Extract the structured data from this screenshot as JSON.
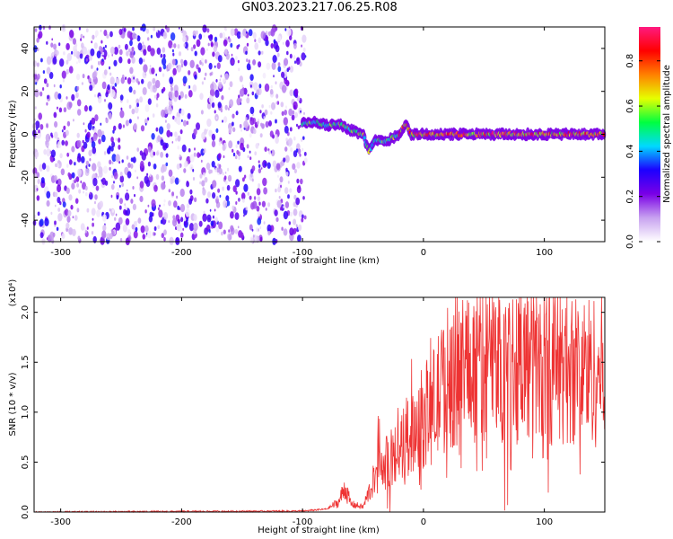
{
  "figure_title": "GN03.2023.217.06.25.R08",
  "chart_data": [
    {
      "type": "heatmap",
      "name": "spectrogram",
      "xlabel": "Height of straight line (km)",
      "ylabel": "Frequency (Hz)",
      "xlim": [
        -322,
        150
      ],
      "ylim": [
        -50,
        50
      ],
      "x_ticks": [
        -300,
        -200,
        -100,
        0,
        100
      ],
      "y_ticks": [
        -40,
        -20,
        0,
        20,
        40
      ],
      "colorbar": {
        "label": "Normalized spectral amplitude",
        "range": [
          0.0,
          0.95
        ],
        "ticks": [
          0.0,
          0.2,
          0.4,
          0.6,
          0.8
        ],
        "colormap": [
          "#ffffff",
          "#c8a2f0",
          "#7a00e6",
          "#1c00ff",
          "#00d9ff",
          "#00ff40",
          "#e6ff00",
          "#ff8000",
          "#ff0000",
          "#ff1a80"
        ]
      },
      "noise_region_x": [
        -322,
        -100
      ],
      "signal_track": {
        "x": [
          -100,
          -90,
          -80,
          -70,
          -60,
          -50,
          -45,
          -40,
          -30,
          -20,
          -15,
          -10,
          0,
          20,
          40,
          60,
          80,
          100,
          120,
          150
        ],
        "y": [
          5,
          6,
          4,
          5,
          2,
          0,
          -8,
          -3,
          -3,
          0,
          5,
          0,
          0,
          0,
          0,
          0,
          0,
          0,
          0,
          0
        ]
      }
    },
    {
      "type": "line",
      "name": "snr",
      "xlabel": "Height of straight line (km)",
      "ylabel": "SNR (10 * v/v)",
      "multiplier_label": "(x10⁴)",
      "xlim": [
        -322,
        150
      ],
      "ylim": [
        0.0,
        2.15
      ],
      "x_ticks": [
        -300,
        -200,
        -100,
        0,
        100
      ],
      "y_ticks": [
        0.0,
        0.5,
        1.0,
        1.5,
        2.0
      ],
      "y_tick_labels": [
        "0.0",
        "0.5",
        "1.0",
        "1.5",
        "2.0"
      ],
      "series_color": "#ee3333",
      "trend": {
        "x": [
          -322,
          -100,
          -80,
          -70,
          -65,
          -60,
          -50,
          -40,
          -30,
          -20,
          -10,
          0,
          10,
          20,
          30,
          50,
          80,
          100,
          120,
          150
        ],
        "y": [
          0.0,
          0.01,
          0.03,
          0.1,
          0.25,
          0.08,
          0.05,
          0.35,
          0.5,
          0.62,
          0.8,
          0.95,
          1.1,
          1.35,
          1.45,
          1.52,
          1.5,
          1.48,
          1.45,
          1.4
        ]
      }
    }
  ]
}
